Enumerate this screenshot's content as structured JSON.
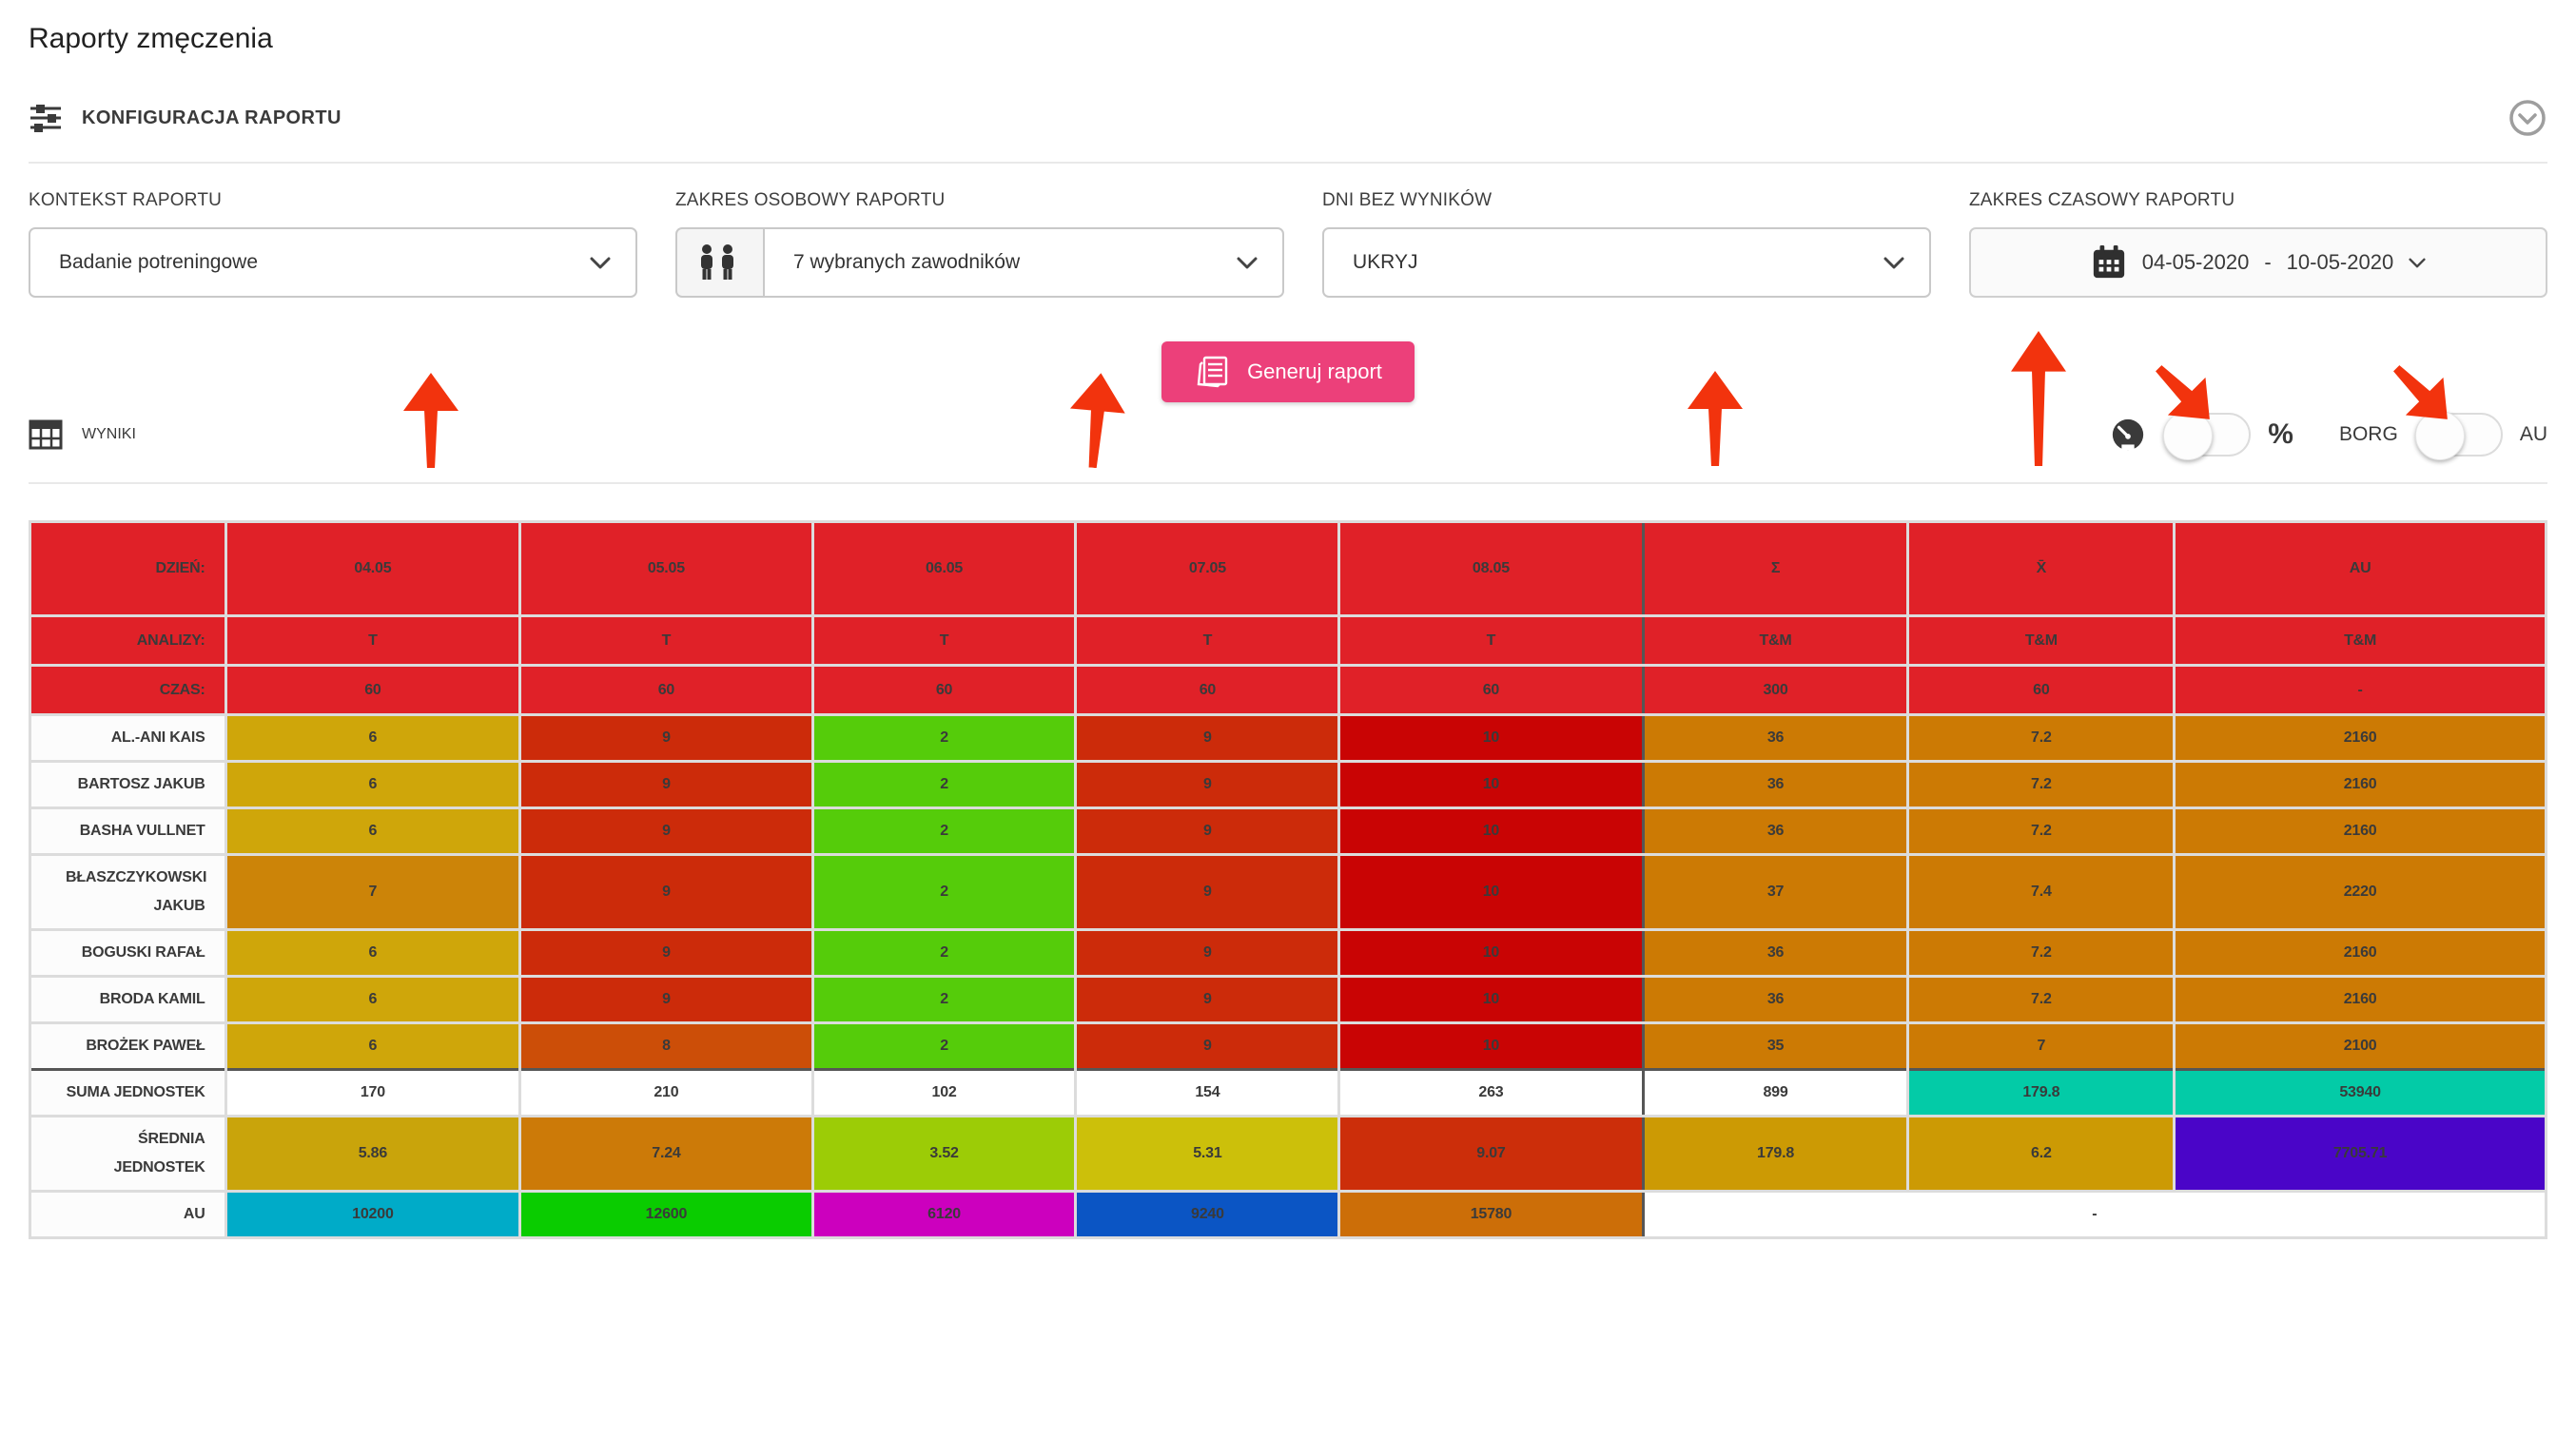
{
  "page": {
    "title": "Raporty zmęczenia"
  },
  "config": {
    "section_title": "KONFIGURACJA RAPORTU",
    "fields": {
      "context": {
        "label": "KONTEKST RAPORTU",
        "value": "Badanie potreningowe"
      },
      "persons": {
        "label": "ZAKRES OSOBOWY RAPORTU",
        "value": "7 wybranych zawodników"
      },
      "empty_days": {
        "label": "DNI BEZ WYNIKÓW",
        "value": "UKRYJ"
      },
      "time_range": {
        "label": "ZAKRES CZASOWY RAPORTU",
        "date_from": "04-05-2020",
        "separator": "-",
        "date_to": "10-05-2020"
      }
    },
    "generate_button": "Generuj raport"
  },
  "results": {
    "section_title": "WYNIKI",
    "toggles": {
      "percent_label": "%",
      "borg_label": "BORG",
      "au_label": "AU"
    }
  },
  "icons": {
    "config": "sliders-icon",
    "collapse": "chevron-down-circle-icon",
    "persons": "people-icon",
    "calendar": "calendar-icon",
    "generate": "report-icon",
    "results": "table-icon",
    "color_scale": "gauge-icon"
  },
  "colors": {
    "header_red": "#e02128",
    "accent_pink": "#ec407a",
    "arrow_red": "#f2330d",
    "teal": "#03cba7",
    "purple": "#4a05c8"
  },
  "table": {
    "columns_pct": [
      7.74,
      11.71,
      11.63,
      10.46,
      10.46,
      12.08,
      10.54,
      10.57,
      14.81
    ],
    "header_rows": [
      {
        "key": "dzien",
        "label": "DZIEŃ:",
        "cells": [
          "04.05",
          "05.05",
          "06.05",
          "07.05",
          "08.05",
          "Σ",
          "X̄",
          "AU"
        ]
      },
      {
        "key": "analizy",
        "label": "ANALIZY:",
        "cells": [
          "T",
          "T",
          "T",
          "T",
          "T",
          "T&M",
          "T&M",
          "T&M"
        ]
      },
      {
        "key": "czas",
        "label": "CZAS:",
        "cells": [
          "60",
          "60",
          "60",
          "60",
          "60",
          "300",
          "60",
          "-"
        ]
      }
    ],
    "players": [
      {
        "name": "AL.-ANI KAIS",
        "cells": [
          {
            "v": "6",
            "bg": "#cfa60a"
          },
          {
            "v": "9",
            "bg": "#cc2b0a"
          },
          {
            "v": "2",
            "bg": "#55cc0a"
          },
          {
            "v": "9",
            "bg": "#cc2b0a"
          },
          {
            "v": "10",
            "bg": "#c90404"
          },
          {
            "v": "36",
            "bg": "#cc7a04"
          },
          {
            "v": "7.2",
            "bg": "#cc7a04"
          },
          {
            "v": "2160",
            "bg": "#cc7a04"
          }
        ]
      },
      {
        "name": "BARTOSZ JAKUB",
        "cells": [
          {
            "v": "6",
            "bg": "#cfa60a"
          },
          {
            "v": "9",
            "bg": "#cc2b0a"
          },
          {
            "v": "2",
            "bg": "#55cc0a"
          },
          {
            "v": "9",
            "bg": "#cc2b0a"
          },
          {
            "v": "10",
            "bg": "#c90404"
          },
          {
            "v": "36",
            "bg": "#cc7a04"
          },
          {
            "v": "7.2",
            "bg": "#cc7a04"
          },
          {
            "v": "2160",
            "bg": "#cc7a04"
          }
        ]
      },
      {
        "name": "BASHA VULLNET",
        "cells": [
          {
            "v": "6",
            "bg": "#cfa60a"
          },
          {
            "v": "9",
            "bg": "#cc2b0a"
          },
          {
            "v": "2",
            "bg": "#55cc0a"
          },
          {
            "v": "9",
            "bg": "#cc2b0a"
          },
          {
            "v": "10",
            "bg": "#c90404"
          },
          {
            "v": "36",
            "bg": "#cc7a04"
          },
          {
            "v": "7.2",
            "bg": "#cc7a04"
          },
          {
            "v": "2160",
            "bg": "#cc7a04"
          }
        ]
      },
      {
        "name": "BŁASZCZYKOWSKI JAKUB",
        "cells": [
          {
            "v": "7",
            "bg": "#cc8408"
          },
          {
            "v": "9",
            "bg": "#cc2b0a"
          },
          {
            "v": "2",
            "bg": "#55cc0a"
          },
          {
            "v": "9",
            "bg": "#cc2b0a"
          },
          {
            "v": "10",
            "bg": "#c90404"
          },
          {
            "v": "37",
            "bg": "#cc7a04"
          },
          {
            "v": "7.4",
            "bg": "#cc7a04"
          },
          {
            "v": "2220",
            "bg": "#cc7a04"
          }
        ]
      },
      {
        "name": "BOGUSKI RAFAŁ",
        "cells": [
          {
            "v": "6",
            "bg": "#cfa60a"
          },
          {
            "v": "9",
            "bg": "#cc2b0a"
          },
          {
            "v": "2",
            "bg": "#55cc0a"
          },
          {
            "v": "9",
            "bg": "#cc2b0a"
          },
          {
            "v": "10",
            "bg": "#c90404"
          },
          {
            "v": "36",
            "bg": "#cc7a04"
          },
          {
            "v": "7.2",
            "bg": "#cc7a04"
          },
          {
            "v": "2160",
            "bg": "#cc7a04"
          }
        ]
      },
      {
        "name": "BRODA KAMIL",
        "cells": [
          {
            "v": "6",
            "bg": "#cfa60a"
          },
          {
            "v": "9",
            "bg": "#cc2b0a"
          },
          {
            "v": "2",
            "bg": "#55cc0a"
          },
          {
            "v": "9",
            "bg": "#cc2b0a"
          },
          {
            "v": "10",
            "bg": "#c90404"
          },
          {
            "v": "36",
            "bg": "#cc7a04"
          },
          {
            "v": "7.2",
            "bg": "#cc7a04"
          },
          {
            "v": "2160",
            "bg": "#cc7a04"
          }
        ]
      },
      {
        "name": "BROŻEK PAWEŁ",
        "cells": [
          {
            "v": "6",
            "bg": "#cfa60a"
          },
          {
            "v": "8",
            "bg": "#cc4e08"
          },
          {
            "v": "2",
            "bg": "#55cc0a"
          },
          {
            "v": "9",
            "bg": "#cc2b0a"
          },
          {
            "v": "10",
            "bg": "#c90404"
          },
          {
            "v": "35",
            "bg": "#cc7a04"
          },
          {
            "v": "7",
            "bg": "#cc7a04"
          },
          {
            "v": "2100",
            "bg": "#cc7a04"
          }
        ]
      }
    ],
    "summary": [
      {
        "key": "suma",
        "label": "SUMA JEDNOSTEK",
        "cells": [
          {
            "v": "170",
            "bg": "#ffffff"
          },
          {
            "v": "210",
            "bg": "#ffffff"
          },
          {
            "v": "102",
            "bg": "#ffffff"
          },
          {
            "v": "154",
            "bg": "#ffffff"
          },
          {
            "v": "263",
            "bg": "#ffffff"
          },
          {
            "v": "899",
            "bg": "#ffffff"
          },
          {
            "v": "179.8",
            "bg": "#03cba7"
          },
          {
            "v": "53940",
            "bg": "#03cba7"
          }
        ]
      },
      {
        "key": "srednia",
        "label": "ŚREDNIA JEDNOSTEK",
        "cells": [
          {
            "v": "5.86",
            "bg": "#c9a40b"
          },
          {
            "v": "7.24",
            "bg": "#cc7a08"
          },
          {
            "v": "3.52",
            "bg": "#9ccc06"
          },
          {
            "v": "5.31",
            "bg": "#ccc00a"
          },
          {
            "v": "9.07",
            "bg": "#cc2e0a"
          },
          {
            "v": "179.8",
            "bg": "#cc9a04"
          },
          {
            "v": "6.2",
            "bg": "#cc9a04"
          },
          {
            "v": "7705.71",
            "bg": "#4a05c8"
          }
        ]
      },
      {
        "key": "au",
        "label": "AU",
        "cells": [
          {
            "v": "10200",
            "bg": "#00abc8"
          },
          {
            "v": "12600",
            "bg": "#0acc00"
          },
          {
            "v": "6120",
            "bg": "#cc00be"
          },
          {
            "v": "9240",
            "bg": "#0b55c4"
          },
          {
            "v": "15780",
            "bg": "#cc6e08"
          },
          {
            "v": "-",
            "bg": "#ffffff",
            "colspan": 3
          }
        ]
      }
    ]
  }
}
